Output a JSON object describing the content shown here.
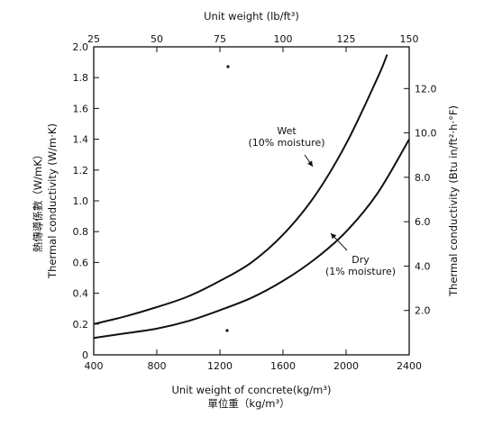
{
  "chart_data": {
    "type": "line",
    "title": "",
    "xlabel": "Unit weight of concrete(kg/m³)",
    "xlabel_cjk": "單位重（kg/m³）",
    "ylabel": "Thermal conductivity (W/m·K)",
    "ylabel_cjk": "熱傳導係數（W/mK）",
    "x2label": "Unit weight (lb/ft³)",
    "y2label": "Thermal conductivity (Btu in/ft²·h·°F)",
    "xlim": [
      400,
      2400
    ],
    "ylim": [
      0,
      2.0
    ],
    "x2lim": [
      25,
      150
    ],
    "y2lim": [
      0,
      13.88
    ],
    "x_ticks": [
      400,
      800,
      1200,
      1600,
      2000,
      2400
    ],
    "x_tick_labels": [
      "400",
      "800",
      "1200",
      "1600",
      "2000",
      "2400"
    ],
    "y_ticks": [
      0,
      0.2,
      0.4,
      0.6,
      0.8,
      1.0,
      1.2,
      1.4,
      1.6,
      1.8,
      2.0
    ],
    "y_tick_labels": [
      "0",
      "0.2",
      "0.4",
      "0.6",
      "0.8",
      "1.0",
      "1.2",
      "1.4",
      "1.6",
      "1.8",
      "2.0"
    ],
    "x2_ticks": [
      25,
      50,
      75,
      100,
      125,
      150
    ],
    "x2_tick_labels": [
      "25",
      "50",
      "75",
      "100",
      "125",
      "150"
    ],
    "y2_ticks": [
      2.0,
      4.0,
      6.0,
      8.0,
      10.0,
      12.0
    ],
    "y2_tick_labels": [
      "2.0",
      "4.0",
      "6.0",
      "8.0",
      "10.0",
      "12.0"
    ],
    "grid": false,
    "series": [
      {
        "name": "Wet (10% moisture)",
        "label_lines": [
          "Wet",
          "(10% moisture)"
        ],
        "x": [
          400,
          600,
          800,
          1000,
          1200,
          1400,
          1600,
          1800,
          2000,
          2200,
          2260
        ],
        "y": [
          0.2,
          0.25,
          0.31,
          0.38,
          0.48,
          0.6,
          0.78,
          1.03,
          1.37,
          1.8,
          1.95
        ]
      },
      {
        "name": "Dry (1% moisture)",
        "label_lines": [
          "Dry",
          "(1% moisture)"
        ],
        "x": [
          400,
          600,
          800,
          1000,
          1200,
          1400,
          1600,
          1800,
          2000,
          2200,
          2400
        ],
        "y": [
          0.11,
          0.14,
          0.17,
          0.22,
          0.29,
          0.37,
          0.48,
          0.62,
          0.8,
          1.05,
          1.4
        ]
      }
    ]
  }
}
